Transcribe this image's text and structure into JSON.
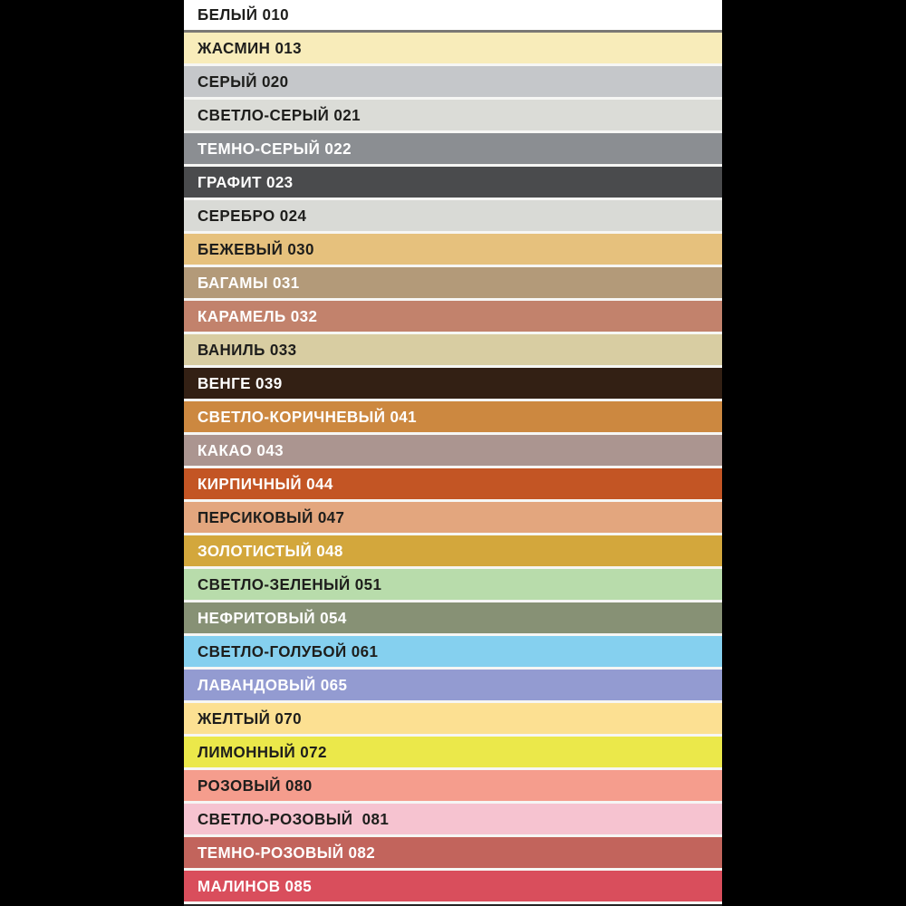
{
  "canvas": {
    "background": "#000000",
    "gap_color": "#f6f6f4",
    "first_divider_color": "#7a7874",
    "bottom_bar_color": "#242424"
  },
  "palette": {
    "description": "Vertical list of grout color swatches with Russian names and codes",
    "rows": [
      {
        "label": "БЕЛЫЙ 010",
        "color": "#ffffff",
        "text_color": "#1e1e1c"
      },
      {
        "label": "ЖАСМИН 013",
        "color": "#f8ecba",
        "text_color": "#1e1e1c"
      },
      {
        "label": "СЕРЫЙ 020",
        "color": "#c5c7ca",
        "text_color": "#1e1e1c"
      },
      {
        "label": "СВЕТЛО-СЕРЫЙ 021",
        "color": "#dbdcd7",
        "text_color": "#1e1e1c"
      },
      {
        "label": "ТЕМНО-СЕРЫЙ 022",
        "color": "#8b8e92",
        "text_color": "#ffffff"
      },
      {
        "label": "ГРАФИТ 023",
        "color": "#4a4b4d",
        "text_color": "#ffffff"
      },
      {
        "label": "СЕРЕБРО 024",
        "color": "#d9dad6",
        "text_color": "#1e1e1c"
      },
      {
        "label": "БЕЖЕВЫЙ 030",
        "color": "#e6c17d",
        "text_color": "#1e1e1c"
      },
      {
        "label": "БАГАМЫ 031",
        "color": "#b39a79",
        "text_color": "#ffffff"
      },
      {
        "label": "КАРАМЕЛЬ 032",
        "color": "#c2826c",
        "text_color": "#ffffff"
      },
      {
        "label": "ВАНИЛЬ 033",
        "color": "#d8cda2",
        "text_color": "#1e1e1c"
      },
      {
        "label": "ВЕНГЕ 039",
        "color": "#332014",
        "text_color": "#ffffff"
      },
      {
        "label": "СВЕТЛО-КОРИЧНЕВЫЙ 041",
        "color": "#cc8840",
        "text_color": "#ffffff"
      },
      {
        "label": "КАКАО 043",
        "color": "#ab9590",
        "text_color": "#ffffff"
      },
      {
        "label": "КИРПИЧНЫЙ 044",
        "color": "#c35524",
        "text_color": "#ffffff"
      },
      {
        "label": "ПЕРСИКОВЫЙ 047",
        "color": "#e3a67e",
        "text_color": "#1e1e1c"
      },
      {
        "label": "ЗОЛОТИСТЫЙ 048",
        "color": "#d3a73c",
        "text_color": "#ffffff"
      },
      {
        "label": "СВЕТЛО-ЗЕЛЕНЫЙ 051",
        "color": "#b8dcab",
        "text_color": "#1e1e1c"
      },
      {
        "label": "НЕФРИТОВЫЙ 054",
        "color": "#879175",
        "text_color": "#ffffff"
      },
      {
        "label": "СВЕТЛО-ГОЛУБОЙ 061",
        "color": "#85d0ef",
        "text_color": "#1e1e1c"
      },
      {
        "label": "ЛАВАНДОВЫЙ 065",
        "color": "#939bd1",
        "text_color": "#ffffff"
      },
      {
        "label": "ЖЕЛТЫЙ 070",
        "color": "#fce092",
        "text_color": "#1e1e1c"
      },
      {
        "label": "ЛИМОННЫЙ 072",
        "color": "#ebe84a",
        "text_color": "#1e1e1c"
      },
      {
        "label": "РОЗОВЫЙ 080",
        "color": "#f59d8d",
        "text_color": "#1e1e1c"
      },
      {
        "label": "СВЕТЛО-РОЗОВЫЙ  081",
        "color": "#f6c3d0",
        "text_color": "#1e1e1c"
      },
      {
        "label": "ТЕМНО-РОЗОВЫЙ 082",
        "color": "#c2645c",
        "text_color": "#ffffff"
      },
      {
        "label": "МАЛИНОВ 085",
        "color": "#d94e5c",
        "text_color": "#ffffff"
      }
    ]
  }
}
